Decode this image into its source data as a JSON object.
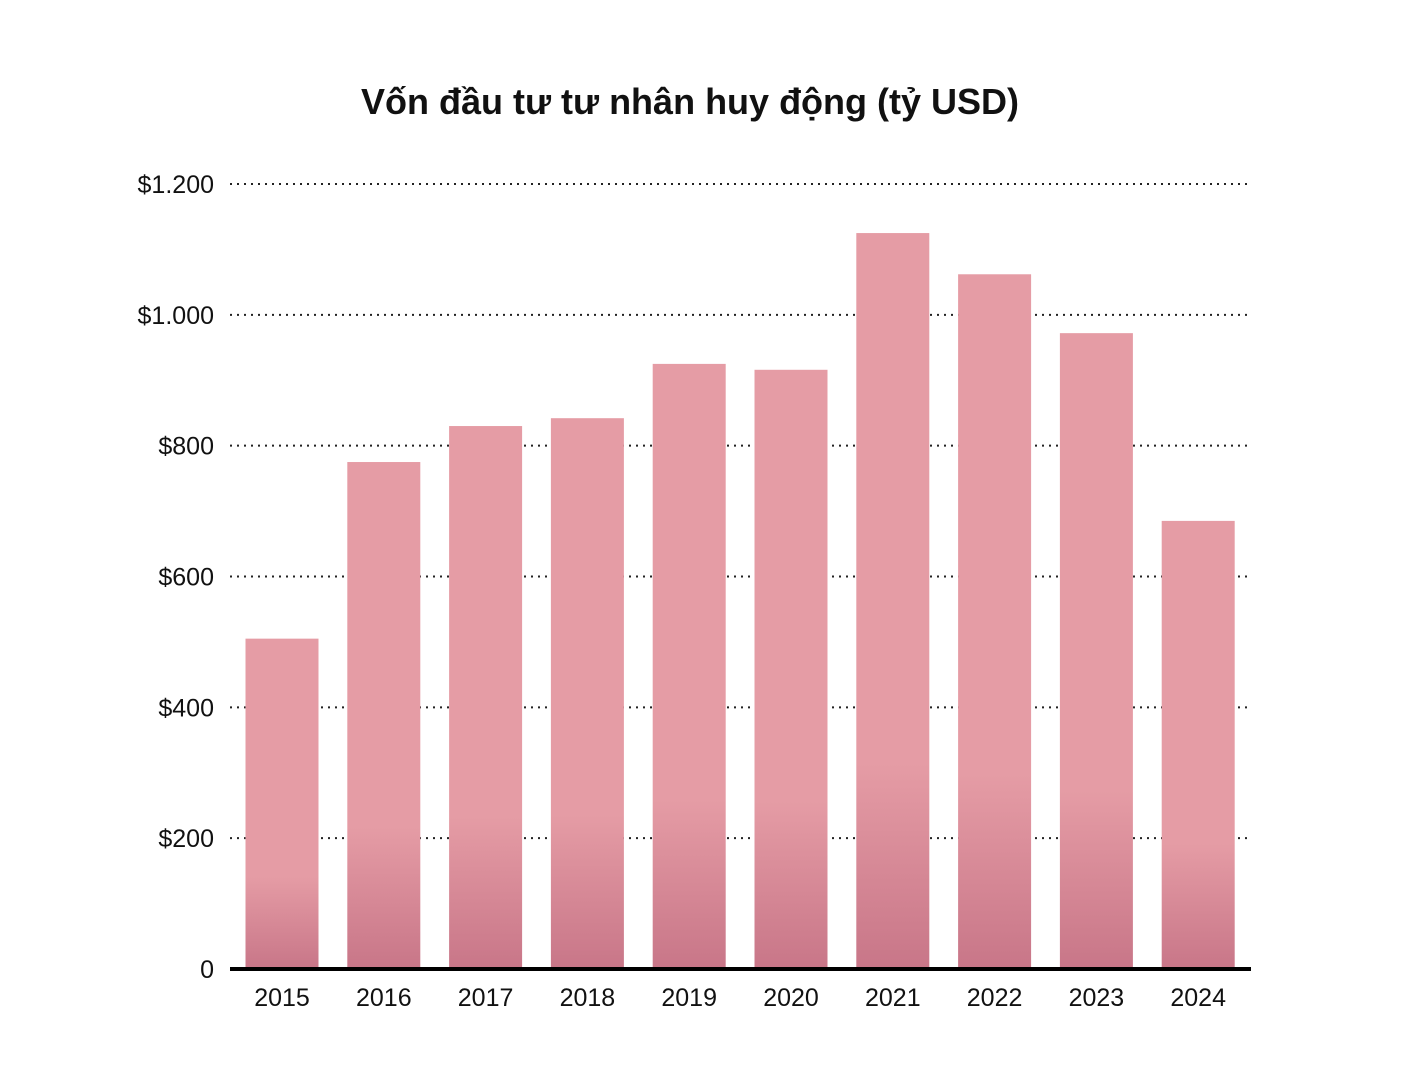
{
  "chart_data": {
    "type": "bar",
    "title": "Vốn đầu tư tư nhân huy động (tỷ USD)",
    "xlabel": "",
    "ylabel": "",
    "categories": [
      "2015",
      "2016",
      "2017",
      "2018",
      "2019",
      "2020",
      "2021",
      "2022",
      "2023",
      "2024"
    ],
    "values": [
      505,
      775,
      830,
      842,
      925,
      916,
      1125,
      1062,
      972,
      685
    ],
    "ylim": [
      0,
      1200
    ],
    "y_ticks": [
      0,
      200,
      400,
      600,
      800,
      1000,
      1200
    ],
    "y_tick_labels": [
      "0",
      "$200",
      "$400",
      "$600",
      "$800",
      "$1.000",
      "$1.200"
    ],
    "grid": true,
    "grid_style": "dotted",
    "legend": "none",
    "colors": {
      "bar_top": "#e59ca5",
      "bar_bottom": "#c87688",
      "axis": "#000000",
      "grid": "#222222",
      "text": "#111111"
    }
  }
}
